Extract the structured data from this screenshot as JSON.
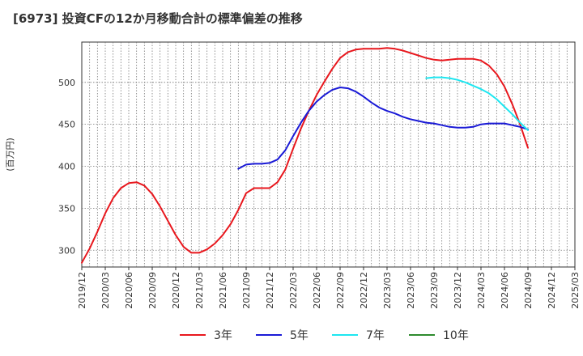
{
  "chart_data": {
    "type": "line",
    "title": "[6973]  投資CFの12か月移動合計の標準偏差の推移",
    "xlabel": "",
    "ylabel": "(百万円)",
    "x_ticks": [
      "2019/12",
      "2020/03",
      "2020/06",
      "2020/09",
      "2020/12",
      "2021/03",
      "2021/06",
      "2021/09",
      "2021/12",
      "2022/03",
      "2022/06",
      "2022/09",
      "2022/12",
      "2023/03",
      "2023/06",
      "2023/09",
      "2023/12",
      "2024/03",
      "2024/06",
      "2024/09",
      "2024/12",
      "2025/03"
    ],
    "y_ticks": [
      300,
      350,
      400,
      450,
      500
    ],
    "ylim": [
      280,
      548
    ],
    "grid": true,
    "legend_position": "bottom",
    "series": [
      {
        "name": "3年",
        "color": "#e8171d",
        "x": [
          "2019/12",
          "2020/01",
          "2020/02",
          "2020/03",
          "2020/04",
          "2020/05",
          "2020/06",
          "2020/07",
          "2020/08",
          "2020/09",
          "2020/10",
          "2020/11",
          "2020/12",
          "2021/01",
          "2021/02",
          "2021/03",
          "2021/04",
          "2021/05",
          "2021/06",
          "2021/07",
          "2021/08",
          "2021/09",
          "2021/10",
          "2021/11",
          "2021/12",
          "2022/01",
          "2022/02",
          "2022/03",
          "2022/04",
          "2022/05",
          "2022/06",
          "2022/07",
          "2022/08",
          "2022/09",
          "2022/10",
          "2022/11",
          "2022/12",
          "2023/01",
          "2023/02",
          "2023/03",
          "2023/04",
          "2023/05",
          "2023/06",
          "2023/07",
          "2023/08",
          "2023/09",
          "2023/10",
          "2023/11",
          "2023/12",
          "2024/01",
          "2024/02",
          "2024/03",
          "2024/04",
          "2024/05",
          "2024/06",
          "2024/07",
          "2024/08",
          "2024/09"
        ],
        "values": [
          285,
          302,
          322,
          344,
          362,
          374,
          380,
          381,
          377,
          367,
          352,
          335,
          318,
          304,
          297,
          297,
          301,
          308,
          318,
          331,
          348,
          368,
          374,
          374,
          374,
          381,
          396,
          421,
          445,
          466,
          485,
          501,
          516,
          529,
          536,
          539,
          540,
          540,
          540,
          541,
          540,
          538,
          535,
          532,
          529,
          527,
          526,
          527,
          528,
          528,
          528,
          526,
          520,
          510,
          495,
          474,
          450,
          422
        ]
      },
      {
        "name": "5年",
        "color": "#1a1ad6",
        "x": [
          "2021/08",
          "2021/09",
          "2021/10",
          "2021/11",
          "2021/12",
          "2022/01",
          "2022/02",
          "2022/03",
          "2022/04",
          "2022/05",
          "2022/06",
          "2022/07",
          "2022/08",
          "2022/09",
          "2022/10",
          "2022/11",
          "2022/12",
          "2023/01",
          "2023/02",
          "2023/03",
          "2023/04",
          "2023/05",
          "2023/06",
          "2023/07",
          "2023/08",
          "2023/09",
          "2023/10",
          "2023/11",
          "2023/12",
          "2024/01",
          "2024/02",
          "2024/03",
          "2024/04",
          "2024/05",
          "2024/06",
          "2024/07",
          "2024/08",
          "2024/09"
        ],
        "values": [
          397,
          402,
          403,
          403,
          404,
          408,
          419,
          436,
          452,
          466,
          477,
          485,
          491,
          494,
          493,
          489,
          483,
          476,
          470,
          466,
          463,
          459,
          456,
          454,
          452,
          451,
          449,
          447,
          446,
          446,
          447,
          450,
          451,
          451,
          451,
          449,
          447,
          444
        ]
      },
      {
        "name": "7年",
        "color": "#1de6f0",
        "x": [
          "2023/08",
          "2023/09",
          "2023/10",
          "2023/11",
          "2023/12",
          "2024/01",
          "2024/02",
          "2024/03",
          "2024/04",
          "2024/05",
          "2024/06",
          "2024/07",
          "2024/08",
          "2024/09"
        ],
        "values": [
          505,
          506,
          506,
          505,
          503,
          500,
          496,
          492,
          487,
          480,
          471,
          462,
          452,
          443
        ]
      },
      {
        "name": "10年",
        "color": "#2e8b2e",
        "x": [],
        "values": []
      }
    ]
  }
}
